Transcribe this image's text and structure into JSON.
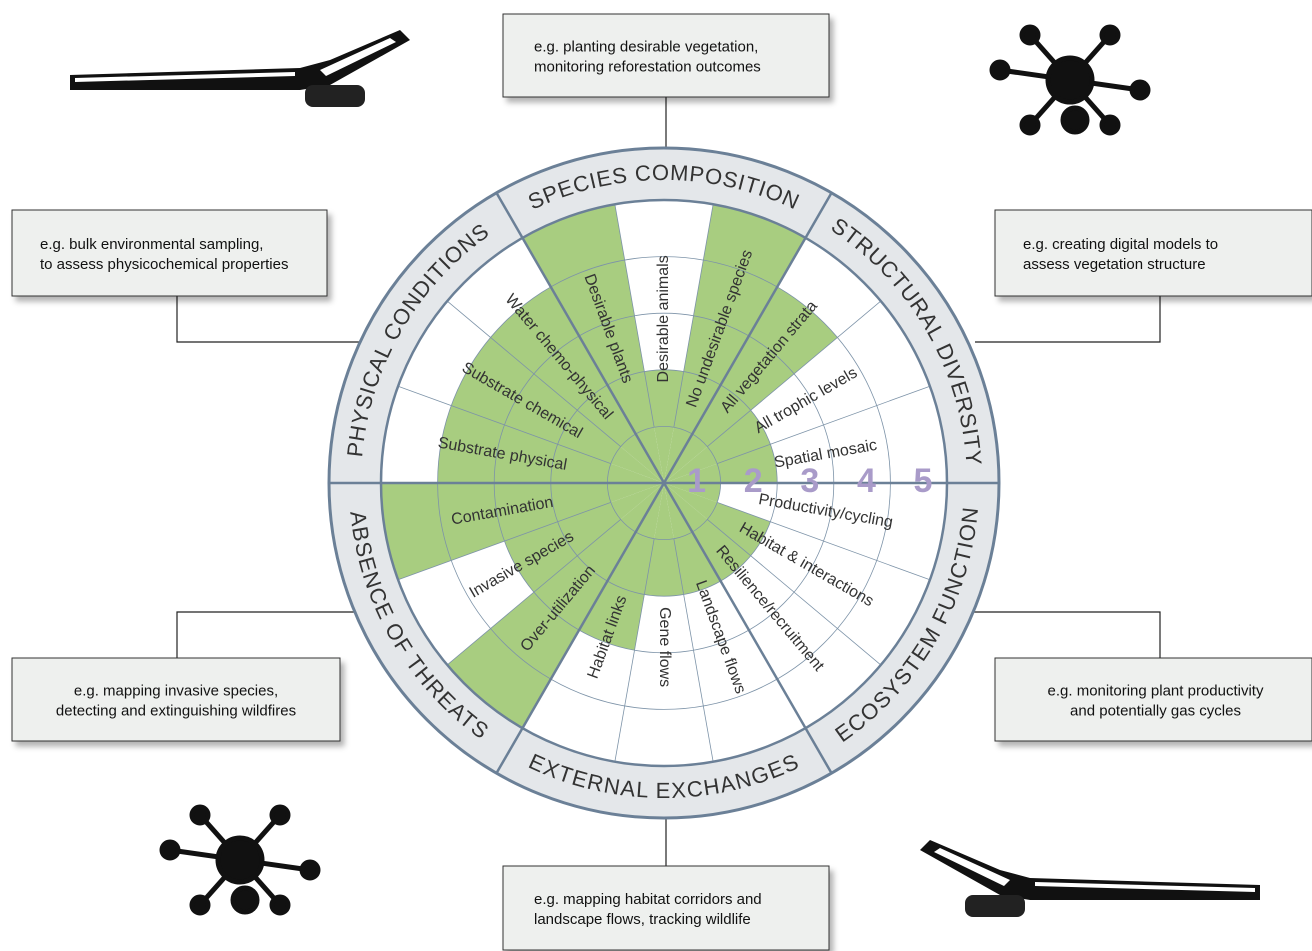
{
  "scale": [
    1,
    2,
    3,
    4,
    5
  ],
  "sectors": [
    {
      "name": "PHYSICAL CONDITIONS",
      "callout": [
        "e.g. bulk environmental sampling,",
        "to assess physicochemical properties"
      ],
      "attributes": [
        {
          "label": "Substrate physical",
          "level": 4
        },
        {
          "label": "Substrate chemical",
          "level": 4
        },
        {
          "label": "Water chemo-physical",
          "level": 4
        }
      ]
    },
    {
      "name": "SPECIES COMPOSITION",
      "callout": [
        "e.g. planting desirable vegetation,",
        "monitoring reforestation outcomes"
      ],
      "attributes": [
        {
          "label": "Desirable plants",
          "level": 5
        },
        {
          "label": "Desirable animals",
          "level": 2
        },
        {
          "label": "No undesirable species",
          "level": 5
        }
      ]
    },
    {
      "name": "STRUCTURAL DIVERSITY",
      "callout": [
        "e.g. creating digital models to",
        "assess vegetation structure"
      ],
      "attributes": [
        {
          "label": "All vegetation strata",
          "level": 4
        },
        {
          "label": "All trophic levels",
          "level": 2
        },
        {
          "label": "Spatial mosaic",
          "level": 2
        }
      ]
    },
    {
      "name": "ECOSYSTEM FUNCTION",
      "callout": [
        "e.g. monitoring plant productivity",
        "and potentially gas cycles"
      ],
      "attributes": [
        {
          "label": "Productivity/cycling",
          "level": 1
        },
        {
          "label": "Habitat & interactions",
          "level": 2
        },
        {
          "label": "Resilience/recruitment",
          "level": 2
        }
      ]
    },
    {
      "name": "EXTERNAL EXCHANGES",
      "callout": [
        "e.g. mapping habitat corridors and",
        "landscape flows, tracking wildlife"
      ],
      "attributes": [
        {
          "label": "Landscape flows",
          "level": 2
        },
        {
          "label": "Gene flows",
          "level": 2
        },
        {
          "label": "Habitat links",
          "level": 3
        }
      ]
    },
    {
      "name": "ABSENCE OF THREATS",
      "callout": [
        "e.g. mapping invasive species,",
        "detecting and extinguishing wildfires"
      ],
      "attributes": [
        {
          "label": "Over-utilization",
          "level": 5
        },
        {
          "label": "Invasive species",
          "level": 3
        },
        {
          "label": "Contamination",
          "level": 5
        }
      ]
    }
  ]
}
